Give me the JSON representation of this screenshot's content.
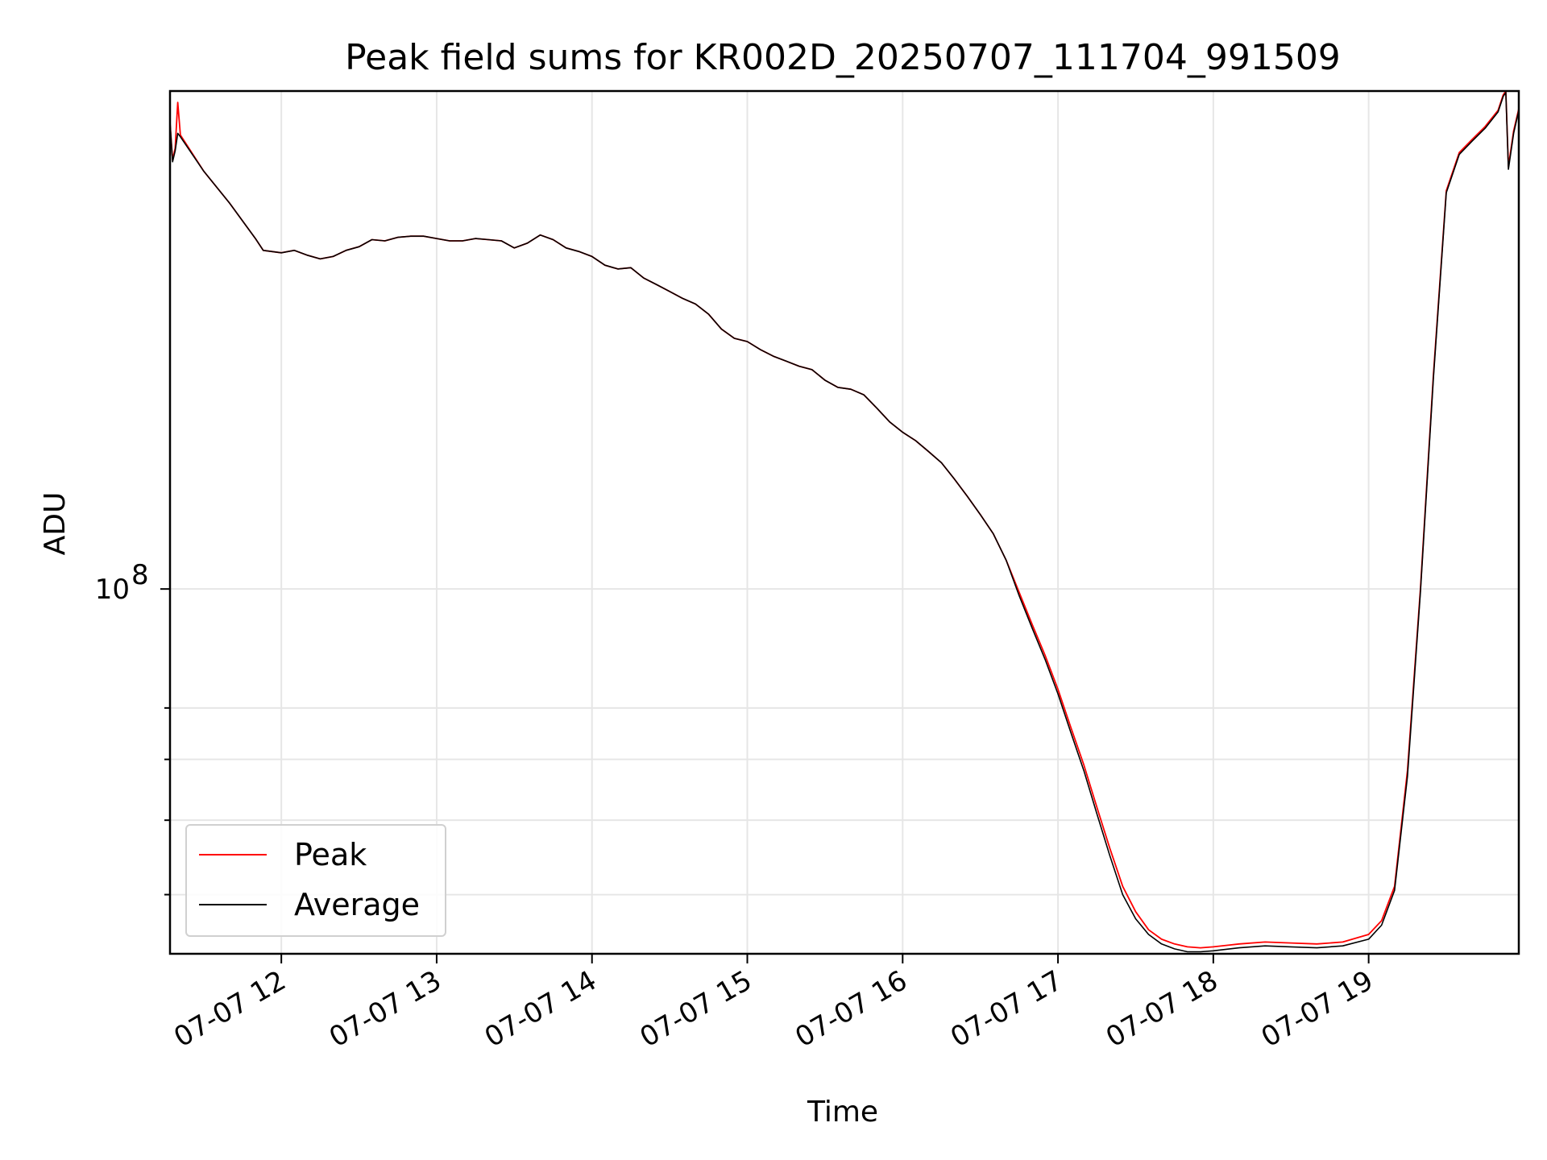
{
  "chart_data": {
    "type": "line",
    "title": "Peak field sums for KR002D_20250707_111704_991509",
    "xlabel": "Time",
    "ylabel": "ADU",
    "yscale": "log",
    "ytick_labels": [
      "10",
      "8"
    ],
    "xtick_labels": [
      "07-07 12",
      "07-07 13",
      "07-07 14",
      "07-07 15",
      "07-07 16",
      "07-07 17",
      "07-07 18",
      "07-07 19"
    ],
    "xlim": [
      "2025-07-07 11:17",
      "2025-07-07 19:58"
    ],
    "ylim": [
      33500000.0,
      445000000.0
    ],
    "grid": true,
    "legend_position": "lower left",
    "series": [
      {
        "name": "Peak",
        "color": "#ff0000",
        "points": [
          [
            "2025-07-07 11:17",
            405000000.0
          ],
          [
            "2025-07-07 11:18",
            362000000.0
          ],
          [
            "2025-07-07 11:19",
            375000000.0
          ],
          [
            "2025-07-07 11:20",
            430000000.0
          ],
          [
            "2025-07-07 11:21",
            390000000.0
          ],
          [
            "2025-07-07 11:30",
            350000000.0
          ],
          [
            "2025-07-07 11:40",
            318000000.0
          ],
          [
            "2025-07-07 11:50",
            286000000.0
          ],
          [
            "2025-07-07 11:53",
            276000000.0
          ],
          [
            "2025-07-07 12:00",
            274000000.0
          ],
          [
            "2025-07-07 12:05",
            276000000.0
          ],
          [
            "2025-07-07 12:10",
            272000000.0
          ],
          [
            "2025-07-07 12:15",
            269000000.0
          ],
          [
            "2025-07-07 12:20",
            271000000.0
          ],
          [
            "2025-07-07 12:25",
            276000000.0
          ],
          [
            "2025-07-07 12:30",
            279000000.0
          ],
          [
            "2025-07-07 12:35",
            285000000.0
          ],
          [
            "2025-07-07 12:40",
            284000000.0
          ],
          [
            "2025-07-07 12:45",
            287000000.0
          ],
          [
            "2025-07-07 12:50",
            288000000.0
          ],
          [
            "2025-07-07 12:55",
            288000000.0
          ],
          [
            "2025-07-07 13:00",
            286000000.0
          ],
          [
            "2025-07-07 13:05",
            284000000.0
          ],
          [
            "2025-07-07 13:10",
            284000000.0
          ],
          [
            "2025-07-07 13:15",
            286000000.0
          ],
          [
            "2025-07-07 13:20",
            285000000.0
          ],
          [
            "2025-07-07 13:25",
            284000000.0
          ],
          [
            "2025-07-07 13:30",
            278000000.0
          ],
          [
            "2025-07-07 13:35",
            282000000.0
          ],
          [
            "2025-07-07 13:40",
            289000000.0
          ],
          [
            "2025-07-07 13:45",
            285000000.0
          ],
          [
            "2025-07-07 13:50",
            278000000.0
          ],
          [
            "2025-07-07 13:55",
            275000000.0
          ],
          [
            "2025-07-07 14:00",
            271000000.0
          ],
          [
            "2025-07-07 14:05",
            264000000.0
          ],
          [
            "2025-07-07 14:10",
            261000000.0
          ],
          [
            "2025-07-07 14:15",
            262000000.0
          ],
          [
            "2025-07-07 14:20",
            254000000.0
          ],
          [
            "2025-07-07 14:25",
            249000000.0
          ],
          [
            "2025-07-07 14:30",
            244000000.0
          ],
          [
            "2025-07-07 14:35",
            239000000.0
          ],
          [
            "2025-07-07 14:40",
            235000000.0
          ],
          [
            "2025-07-07 14:45",
            228000000.0
          ],
          [
            "2025-07-07 14:50",
            218000000.0
          ],
          [
            "2025-07-07 14:55",
            212000000.0
          ],
          [
            "2025-07-07 15:00",
            210000000.0
          ],
          [
            "2025-07-07 15:05",
            205000000.0
          ],
          [
            "2025-07-07 15:10",
            201000000.0
          ],
          [
            "2025-07-07 15:15",
            198000000.0
          ],
          [
            "2025-07-07 15:20",
            195000000.0
          ],
          [
            "2025-07-07 15:25",
            193000000.0
          ],
          [
            "2025-07-07 15:30",
            187000000.0
          ],
          [
            "2025-07-07 15:35",
            183000000.0
          ],
          [
            "2025-07-07 15:40",
            182000000.0
          ],
          [
            "2025-07-07 15:45",
            179000000.0
          ],
          [
            "2025-07-07 15:50",
            172000000.0
          ],
          [
            "2025-07-07 15:55",
            165000000.0
          ],
          [
            "2025-07-07 16:00",
            160000000.0
          ],
          [
            "2025-07-07 16:05",
            156000000.0
          ],
          [
            "2025-07-07 16:10",
            151000000.0
          ],
          [
            "2025-07-07 16:15",
            146000000.0
          ],
          [
            "2025-07-07 16:20",
            139000000.0
          ],
          [
            "2025-07-07 16:25",
            132000000.0
          ],
          [
            "2025-07-07 16:30",
            125000000.0
          ],
          [
            "2025-07-07 16:35",
            118000000.0
          ],
          [
            "2025-07-07 16:40",
            109000000.0
          ],
          [
            "2025-07-07 16:45",
            99000000.0
          ],
          [
            "2025-07-07 16:50",
            90000000.0
          ],
          [
            "2025-07-07 16:55",
            82000000.0
          ],
          [
            "2025-07-07 17:00",
            74000000.0
          ],
          [
            "2025-07-07 17:05",
            66000000.0
          ],
          [
            "2025-07-07 17:10",
            59000000.0
          ],
          [
            "2025-07-07 17:15",
            52000000.0
          ],
          [
            "2025-07-07 17:20",
            46000000.0
          ],
          [
            "2025-07-07 17:25",
            41000000.0
          ],
          [
            "2025-07-07 17:30",
            38000000.0
          ],
          [
            "2025-07-07 17:35",
            36000000.0
          ],
          [
            "2025-07-07 17:40",
            35000000.0
          ],
          [
            "2025-07-07 17:45",
            34500000.0
          ],
          [
            "2025-07-07 17:50",
            34200000.0
          ],
          [
            "2025-07-07 17:55",
            34100000.0
          ],
          [
            "2025-07-07 18:00",
            34200000.0
          ],
          [
            "2025-07-07 18:10",
            34500000.0
          ],
          [
            "2025-07-07 18:20",
            34700000.0
          ],
          [
            "2025-07-07 18:30",
            34600000.0
          ],
          [
            "2025-07-07 18:40",
            34500000.0
          ],
          [
            "2025-07-07 18:50",
            34700000.0
          ],
          [
            "2025-07-07 19:00",
            35500000.0
          ],
          [
            "2025-07-07 19:05",
            37000000.0
          ],
          [
            "2025-07-07 19:10",
            41000000.0
          ],
          [
            "2025-07-07 19:15",
            58000000.0
          ],
          [
            "2025-07-07 19:20",
            100000000.0
          ],
          [
            "2025-07-07 19:25",
            190000000.0
          ],
          [
            "2025-07-07 19:30",
            330000000.0
          ],
          [
            "2025-07-07 19:35",
            370000000.0
          ],
          [
            "2025-07-07 19:40",
            385000000.0
          ],
          [
            "2025-07-07 19:45",
            400000000.0
          ],
          [
            "2025-07-07 19:50",
            420000000.0
          ],
          [
            "2025-07-07 19:52",
            440000000.0
          ],
          [
            "2025-07-07 19:53",
            445000000.0
          ],
          [
            "2025-07-07 19:54",
            355000000.0
          ],
          [
            "2025-07-07 19:56",
            395000000.0
          ],
          [
            "2025-07-07 19:58",
            422000000.0
          ]
        ]
      },
      {
        "name": "Average",
        "color": "#000000",
        "points": [
          [
            "2025-07-07 11:17",
            405000000.0
          ],
          [
            "2025-07-07 11:18",
            360000000.0
          ],
          [
            "2025-07-07 11:19",
            372000000.0
          ],
          [
            "2025-07-07 11:20",
            392000000.0
          ],
          [
            "2025-07-07 11:21",
            388000000.0
          ],
          [
            "2025-07-07 11:30",
            350000000.0
          ],
          [
            "2025-07-07 11:40",
            318000000.0
          ],
          [
            "2025-07-07 11:50",
            286000000.0
          ],
          [
            "2025-07-07 11:53",
            276000000.0
          ],
          [
            "2025-07-07 12:00",
            274000000.0
          ],
          [
            "2025-07-07 12:05",
            276000000.0
          ],
          [
            "2025-07-07 12:10",
            272000000.0
          ],
          [
            "2025-07-07 12:15",
            269000000.0
          ],
          [
            "2025-07-07 12:20",
            271000000.0
          ],
          [
            "2025-07-07 12:25",
            276000000.0
          ],
          [
            "2025-07-07 12:30",
            279000000.0
          ],
          [
            "2025-07-07 12:35",
            285000000.0
          ],
          [
            "2025-07-07 12:40",
            284000000.0
          ],
          [
            "2025-07-07 12:45",
            287000000.0
          ],
          [
            "2025-07-07 12:50",
            288000000.0
          ],
          [
            "2025-07-07 12:55",
            288000000.0
          ],
          [
            "2025-07-07 13:00",
            286000000.0
          ],
          [
            "2025-07-07 13:05",
            284000000.0
          ],
          [
            "2025-07-07 13:10",
            284000000.0
          ],
          [
            "2025-07-07 13:15",
            286000000.0
          ],
          [
            "2025-07-07 13:20",
            285000000.0
          ],
          [
            "2025-07-07 13:25",
            284000000.0
          ],
          [
            "2025-07-07 13:30",
            278000000.0
          ],
          [
            "2025-07-07 13:35",
            282000000.0
          ],
          [
            "2025-07-07 13:40",
            289000000.0
          ],
          [
            "2025-07-07 13:45",
            285000000.0
          ],
          [
            "2025-07-07 13:50",
            278000000.0
          ],
          [
            "2025-07-07 13:55",
            275000000.0
          ],
          [
            "2025-07-07 14:00",
            271000000.0
          ],
          [
            "2025-07-07 14:05",
            264000000.0
          ],
          [
            "2025-07-07 14:10",
            261000000.0
          ],
          [
            "2025-07-07 14:15",
            262000000.0
          ],
          [
            "2025-07-07 14:20",
            254000000.0
          ],
          [
            "2025-07-07 14:25",
            249000000.0
          ],
          [
            "2025-07-07 14:30",
            244000000.0
          ],
          [
            "2025-07-07 14:35",
            239000000.0
          ],
          [
            "2025-07-07 14:40",
            235000000.0
          ],
          [
            "2025-07-07 14:45",
            228000000.0
          ],
          [
            "2025-07-07 14:50",
            218000000.0
          ],
          [
            "2025-07-07 14:55",
            212000000.0
          ],
          [
            "2025-07-07 15:00",
            210000000.0
          ],
          [
            "2025-07-07 15:05",
            205000000.0
          ],
          [
            "2025-07-07 15:10",
            201000000.0
          ],
          [
            "2025-07-07 15:15",
            198000000.0
          ],
          [
            "2025-07-07 15:20",
            195000000.0
          ],
          [
            "2025-07-07 15:25",
            193000000.0
          ],
          [
            "2025-07-07 15:30",
            187000000.0
          ],
          [
            "2025-07-07 15:35",
            183000000.0
          ],
          [
            "2025-07-07 15:40",
            182000000.0
          ],
          [
            "2025-07-07 15:45",
            179000000.0
          ],
          [
            "2025-07-07 15:50",
            172000000.0
          ],
          [
            "2025-07-07 15:55",
            165000000.0
          ],
          [
            "2025-07-07 16:00",
            160000000.0
          ],
          [
            "2025-07-07 16:05",
            156000000.0
          ],
          [
            "2025-07-07 16:10",
            151000000.0
          ],
          [
            "2025-07-07 16:15",
            146000000.0
          ],
          [
            "2025-07-07 16:20",
            139000000.0
          ],
          [
            "2025-07-07 16:25",
            132000000.0
          ],
          [
            "2025-07-07 16:30",
            125000000.0
          ],
          [
            "2025-07-07 16:35",
            118000000.0
          ],
          [
            "2025-07-07 16:40",
            109000000.0
          ],
          [
            "2025-07-07 16:45",
            98000000.0
          ],
          [
            "2025-07-07 16:50",
            89000000.0
          ],
          [
            "2025-07-07 16:55",
            81000000.0
          ],
          [
            "2025-07-07 17:00",
            73000000.0
          ],
          [
            "2025-07-07 17:05",
            65000000.0
          ],
          [
            "2025-07-07 17:10",
            58000000.0
          ],
          [
            "2025-07-07 17:15",
            51000000.0
          ],
          [
            "2025-07-07 17:20",
            45000000.0
          ],
          [
            "2025-07-07 17:25",
            40000000.0
          ],
          [
            "2025-07-07 17:30",
            37200000.0
          ],
          [
            "2025-07-07 17:35",
            35500000.0
          ],
          [
            "2025-07-07 17:40",
            34500000.0
          ],
          [
            "2025-07-07 17:45",
            34000000.0
          ],
          [
            "2025-07-07 17:50",
            33700000.0
          ],
          [
            "2025-07-07 17:55",
            33700000.0
          ],
          [
            "2025-07-07 18:00",
            33800000.0
          ],
          [
            "2025-07-07 18:10",
            34100000.0
          ],
          [
            "2025-07-07 18:20",
            34300000.0
          ],
          [
            "2025-07-07 18:30",
            34200000.0
          ],
          [
            "2025-07-07 18:40",
            34100000.0
          ],
          [
            "2025-07-07 18:50",
            34300000.0
          ],
          [
            "2025-07-07 19:00",
            35000000.0
          ],
          [
            "2025-07-07 19:05",
            36500000.0
          ],
          [
            "2025-07-07 19:10",
            40500000.0
          ],
          [
            "2025-07-07 19:15",
            57000000.0
          ],
          [
            "2025-07-07 19:20",
            99000000.0
          ],
          [
            "2025-07-07 19:25",
            188000000.0
          ],
          [
            "2025-07-07 19:30",
            328000000.0
          ],
          [
            "2025-07-07 19:35",
            368000000.0
          ],
          [
            "2025-07-07 19:40",
            383000000.0
          ],
          [
            "2025-07-07 19:45",
            398000000.0
          ],
          [
            "2025-07-07 19:50",
            418000000.0
          ],
          [
            "2025-07-07 19:52",
            438000000.0
          ],
          [
            "2025-07-07 19:53",
            443000000.0
          ],
          [
            "2025-07-07 19:54",
            352000000.0
          ],
          [
            "2025-07-07 19:56",
            392000000.0
          ],
          [
            "2025-07-07 19:58",
            420000000.0
          ]
        ]
      }
    ]
  }
}
